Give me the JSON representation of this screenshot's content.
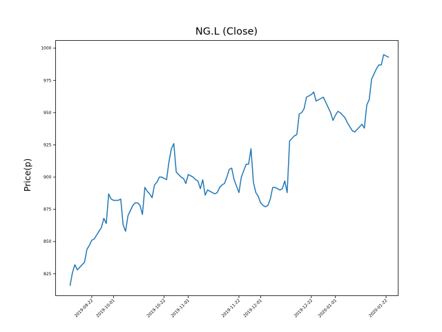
{
  "chart_data": {
    "type": "line",
    "title": "NG.L (Close)",
    "xlabel": "",
    "ylabel": "Price(p)",
    "ylim": [
      808,
      1006
    ],
    "xlim": [
      "2019-09-07",
      "2020-01-27"
    ],
    "yticks": [
      825,
      850,
      875,
      900,
      925,
      950,
      975,
      1000
    ],
    "xticks": [
      "2019-09-22",
      "2019-10-01",
      "2019-10-22",
      "2019-11-01",
      "2019-11-22",
      "2019-12-01",
      "2019-12-22",
      "2020-01-01",
      "2020-01-22"
    ],
    "grid": false,
    "legend": "none",
    "line_color": "#1f77b4",
    "series": [
      {
        "x": [
          "2019-09-13",
          "2019-09-14",
          "2019-09-15",
          "2019-09-16",
          "2019-09-17",
          "2019-09-18",
          "2019-09-19",
          "2019-09-20",
          "2019-09-21",
          "2019-09-22",
          "2019-09-23",
          "2019-09-24",
          "2019-09-25",
          "2019-09-26",
          "2019-09-27",
          "2019-09-28",
          "2019-09-29",
          "2019-09-30",
          "2019-10-01",
          "2019-10-02",
          "2019-10-03",
          "2019-10-04",
          "2019-10-05",
          "2019-10-06",
          "2019-10-07",
          "2019-10-08",
          "2019-10-09",
          "2019-10-10",
          "2019-10-11",
          "2019-10-12",
          "2019-10-13",
          "2019-10-14",
          "2019-10-15",
          "2019-10-16",
          "2019-10-17",
          "2019-10-18",
          "2019-10-19",
          "2019-10-20",
          "2019-10-21",
          "2019-10-22",
          "2019-10-23",
          "2019-10-24",
          "2019-10-25",
          "2019-10-26",
          "2019-10-27",
          "2019-10-28",
          "2019-10-29",
          "2019-10-30",
          "2019-10-31",
          "2019-11-01",
          "2019-11-02",
          "2019-11-03",
          "2019-11-04",
          "2019-11-05",
          "2019-11-06",
          "2019-11-07",
          "2019-11-08",
          "2019-11-09",
          "2019-11-10",
          "2019-11-11",
          "2019-11-12",
          "2019-11-13",
          "2019-11-14",
          "2019-11-15",
          "2019-11-16",
          "2019-11-17",
          "2019-11-18",
          "2019-11-19",
          "2019-11-20",
          "2019-11-21",
          "2019-11-22",
          "2019-11-23",
          "2019-11-24",
          "2019-11-25",
          "2019-11-26",
          "2019-11-27",
          "2019-11-28",
          "2019-11-29",
          "2019-11-30",
          "2019-12-01",
          "2019-12-02",
          "2019-12-03",
          "2019-12-04",
          "2019-12-05",
          "2019-12-06",
          "2019-12-07",
          "2019-12-08",
          "2019-12-09",
          "2019-12-10",
          "2019-12-11",
          "2019-12-12",
          "2019-12-13",
          "2019-12-14",
          "2019-12-15",
          "2019-12-16",
          "2019-12-17",
          "2019-12-18",
          "2019-12-19",
          "2019-12-20",
          "2019-12-21",
          "2019-12-22",
          "2019-12-23",
          "2019-12-24",
          "2019-12-25",
          "2019-12-26",
          "2019-12-27",
          "2019-12-28",
          "2019-12-29",
          "2019-12-30",
          "2019-12-31",
          "2020-01-01",
          "2020-01-02",
          "2020-01-03",
          "2020-01-04",
          "2020-01-05",
          "2020-01-06",
          "2020-01-07",
          "2020-01-08",
          "2020-01-09",
          "2020-01-10",
          "2020-01-11",
          "2020-01-12",
          "2020-01-13",
          "2020-01-14",
          "2020-01-15",
          "2020-01-16",
          "2020-01-17",
          "2020-01-18",
          "2020-01-19",
          "2020-01-20",
          "2020-01-21",
          "2020-01-22",
          "2020-01-23"
        ],
        "values": [
          816,
          826,
          832,
          828,
          830,
          832,
          834,
          844,
          847,
          851,
          852,
          855,
          858,
          861,
          868,
          864,
          887,
          883,
          882,
          882,
          882,
          883,
          863,
          858,
          870,
          874,
          878,
          880,
          880,
          878,
          871,
          892,
          889,
          887,
          884,
          894,
          896,
          900,
          900,
          899,
          898,
          912,
          922,
          926,
          904,
          902,
          900,
          899,
          895,
          902,
          901,
          900,
          898,
          897,
          891,
          898,
          886,
          890,
          889,
          888,
          887,
          888,
          892,
          894,
          895,
          900,
          906,
          907,
          898,
          893,
          888,
          900,
          905,
          910,
          910,
          922,
          896,
          888,
          885,
          880,
          878,
          877,
          878,
          883,
          892,
          892,
          891,
          890,
          891,
          897,
          888,
          928,
          930,
          932,
          933,
          949,
          950,
          953,
          962,
          963,
          964,
          966,
          959,
          960,
          961,
          962,
          958,
          954,
          950,
          944,
          948,
          951,
          950,
          948,
          946,
          942,
          939,
          936,
          935,
          937,
          939,
          941,
          938,
          956,
          960,
          976,
          980,
          984,
          987,
          987,
          995,
          994,
          993
        ]
      }
    ]
  }
}
